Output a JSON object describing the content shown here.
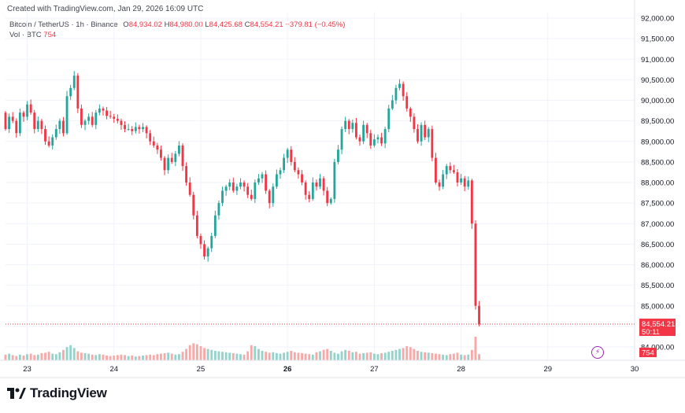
{
  "header": {
    "created": "Created with TradingView.com, Jan 29, 2026 16:09 UTC",
    "symbol": "Bitcoin / TetherUS · 1h · Binance",
    "o_label": "O",
    "o_value": "84,934.02",
    "h_label": "H",
    "h_value": "84,980.00",
    "l_label": "L",
    "l_value": "84,425.68",
    "c_label": "C",
    "c_value": "84,554.21",
    "change": "−379.81 (−0.45%)",
    "vol_label": "Vol · BTC",
    "vol_value": "754"
  },
  "brand": {
    "name": "TradingView"
  },
  "colors": {
    "up": "#26a69a",
    "down": "#f23645",
    "up_vol": "#94d3cc",
    "down_vol": "#f7a9a7",
    "grid": "#f0f3fa",
    "price_tag": "#f23645",
    "lightning": "#9c27b0"
  },
  "chart_data": {
    "type": "candlestick",
    "title": "Bitcoin / TetherUS · 1h · Binance",
    "ylim": [
      83900,
      92100
    ],
    "y_ticks": [
      84000,
      84500,
      85000,
      85500,
      86000,
      86500,
      87000,
      87500,
      88000,
      88500,
      89000,
      89500,
      90000,
      90500,
      91000,
      91500,
      92000
    ],
    "y_tick_labels": [
      "84,000.00",
      "84,500.00",
      "85,000.00",
      "85,500.00",
      "86,000.00",
      "86,500.00",
      "87,000.00",
      "87,500.00",
      "88,000.00",
      "88,500.00",
      "89,000.00",
      "89,500.00",
      "90,000.00",
      "90,500.00",
      "91,000.00",
      "91,500.00",
      "92,000.00"
    ],
    "x_ticks": [
      "23",
      "24",
      "25",
      "26",
      "27",
      "28",
      "29",
      "30"
    ],
    "x_tick_hours": [
      0,
      24,
      48,
      72,
      96,
      120,
      144,
      168
    ],
    "x_hour_range": [
      -6,
      168
    ],
    "last_price_label": "84,554.21",
    "countdown_label": "50:11",
    "last_price": 84554.21,
    "volume_label": "754",
    "grid": true,
    "closes": [
      89300,
      89600,
      89500,
      89200,
      89700,
      89600,
      89900,
      89700,
      89300,
      89500,
      89300,
      89000,
      88900,
      89100,
      89300,
      89500,
      89200,
      90100,
      90300,
      90600,
      89800,
      89400,
      89500,
      89600,
      89400,
      89700,
      89800,
      89750,
      89620,
      89600,
      89550,
      89500,
      89400,
      89300,
      89300,
      89250,
      89350,
      89300,
      89350,
      89200,
      89000,
      88900,
      88800,
      88600,
      88300,
      88600,
      88500,
      88700,
      88900,
      88400,
      88000,
      87700,
      87200,
      86700,
      86500,
      86200,
      86400,
      86700,
      87200,
      87500,
      87800,
      87900,
      88000,
      87800,
      87900,
      88000,
      87900,
      87700,
      87600,
      88000,
      88100,
      88200,
      87800,
      87500,
      87900,
      88200,
      88300,
      88600,
      88800,
      88500,
      88300,
      88200,
      88000,
      87700,
      87600,
      88000,
      87900,
      88100,
      87800,
      87500,
      87600,
      88500,
      88800,
      89300,
      89500,
      89300,
      89450,
      89100,
      89000,
      89400,
      89200,
      88900,
      89050,
      89100,
      88950,
      89300,
      89800,
      90000,
      90300,
      90400,
      90100,
      89800,
      89600,
      89300,
      89000,
      89400,
      89100,
      89300,
      88600,
      88000,
      87900,
      88200,
      88400,
      88300,
      88250,
      88000,
      88100,
      87900,
      88050,
      87000,
      85000,
      84554.21
    ],
    "opens_first": 89700,
    "volumes": [
      60,
      70,
      55,
      45,
      60,
      50,
      65,
      70,
      55,
      60,
      75,
      80,
      90,
      70,
      65,
      85,
      110,
      140,
      160,
      130,
      95,
      80,
      75,
      70,
      60,
      55,
      65,
      60,
      50,
      45,
      50,
      55,
      60,
      55,
      45,
      50,
      40,
      45,
      50,
      55,
      60,
      55,
      65,
      70,
      75,
      80,
      70,
      60,
      65,
      90,
      120,
      160,
      180,
      170,
      150,
      130,
      120,
      110,
      100,
      95,
      90,
      85,
      80,
      75,
      70,
      65,
      60,
      95,
      160,
      150,
      120,
      100,
      90,
      80,
      85,
      75,
      70,
      80,
      90,
      100,
      85,
      80,
      75,
      70,
      65,
      60,
      85,
      95,
      110,
      120,
      100,
      80,
      70,
      95,
      110,
      100,
      85,
      90,
      70,
      75,
      80,
      85,
      70,
      65,
      75,
      80,
      90,
      100,
      110,
      120,
      130,
      150,
      140,
      120,
      100,
      90,
      85,
      80,
      75,
      70,
      65,
      60,
      55,
      65,
      70,
      80,
      60,
      55,
      60,
      110,
      250,
      65
    ]
  }
}
